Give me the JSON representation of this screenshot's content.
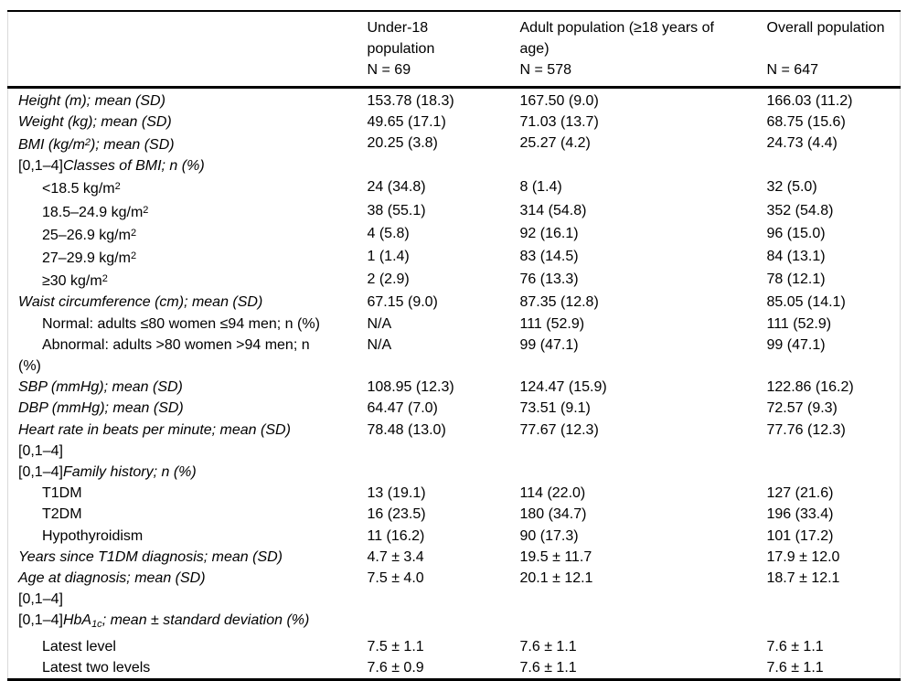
{
  "header": {
    "columns": [
      {
        "label": "Under-18 population",
        "n": "N = 69"
      },
      {
        "label": "Adult population (≥18 years of age)",
        "n": "N = 578"
      },
      {
        "label": "Overall population",
        "n": "N = 647"
      }
    ]
  },
  "rows": [
    {
      "indent": false,
      "label": [
        {
          "t": "Height (m); mean (SD)",
          "i": 1
        }
      ],
      "values": [
        "153.78 (18.3)",
        "167.50 (9.0)",
        "166.03 (11.2)"
      ]
    },
    {
      "indent": false,
      "label": [
        {
          "t": "Weight (kg); mean (SD)",
          "i": 1
        }
      ],
      "values": [
        "49.65 (17.1)",
        "71.03 (13.7)",
        "68.75 (15.6)"
      ]
    },
    {
      "indent": false,
      "label": [
        {
          "t": "BMI (kg/m",
          "i": 1
        },
        {
          "t": "2",
          "i": 1,
          "sup": 1
        },
        {
          "t": "); mean (SD)",
          "i": 1
        }
      ],
      "values": [
        "20.25 (3.8)",
        "25.27 (4.2)",
        "24.73 (4.4)"
      ]
    },
    {
      "indent": false,
      "label": [
        {
          "t": "[0,1–4]"
        },
        {
          "t": "Classes of BMI; n (%)",
          "i": 1
        }
      ],
      "values": [
        "",
        "",
        ""
      ]
    },
    {
      "indent": true,
      "label": [
        {
          "t": "<18.5 kg/m"
        },
        {
          "t": "2",
          "sup": 1
        }
      ],
      "values": [
        "24 (34.8)",
        "8 (1.4)",
        "32 (5.0)"
      ]
    },
    {
      "indent": true,
      "label": [
        {
          "t": "18.5–24.9 kg/m"
        },
        {
          "t": "2",
          "sup": 1
        }
      ],
      "values": [
        "38 (55.1)",
        "314 (54.8)",
        "352 (54.8)"
      ]
    },
    {
      "indent": true,
      "label": [
        {
          "t": "25–26.9 kg/m"
        },
        {
          "t": "2",
          "sup": 1
        }
      ],
      "values": [
        "4 (5.8)",
        "92 (16.1)",
        "96 (15.0)"
      ]
    },
    {
      "indent": true,
      "label": [
        {
          "t": "27–29.9 kg/m"
        },
        {
          "t": "2",
          "sup": 1
        }
      ],
      "values": [
        "1 (1.4)",
        "83 (14.5)",
        "84 (13.1)"
      ]
    },
    {
      "indent": true,
      "label": [
        {
          "t": "≥30 kg/m"
        },
        {
          "t": "2",
          "sup": 1
        }
      ],
      "values": [
        "2 (2.9)",
        "76 (13.3)",
        "78 (12.1)"
      ]
    },
    {
      "indent": false,
      "label": [
        {
          "t": "Waist circumference (cm); mean (SD)",
          "i": 1
        }
      ],
      "values": [
        "67.15 (9.0)",
        "87.35 (12.8)",
        "85.05 (14.1)"
      ]
    },
    {
      "indent": true,
      "label": [
        {
          "t": "Normal: adults ≤80 women ≤94 men; n (%)"
        }
      ],
      "values": [
        "N/A",
        "111 (52.9)",
        "111 (52.9)"
      ]
    },
    {
      "indent": true,
      "label": [
        {
          "t": "Abnormal: adults >80 women >94 men; n"
        },
        {
          "t": "(%)",
          "br": 1
        }
      ],
      "values": [
        "N/A",
        "99 (47.1)",
        "99 (47.1)"
      ]
    },
    {
      "indent": false,
      "label": [
        {
          "t": "SBP (mmHg); mean (SD)",
          "i": 1
        }
      ],
      "values": [
        "108.95 (12.3)",
        "124.47 (15.9)",
        "122.86 (16.2)"
      ]
    },
    {
      "indent": false,
      "label": [
        {
          "t": "DBP (mmHg); mean (SD)",
          "i": 1
        }
      ],
      "values": [
        "64.47 (7.0)",
        "73.51 (9.1)",
        "72.57 (9.3)"
      ]
    },
    {
      "indent": false,
      "label": [
        {
          "t": "Heart rate in beats per minute; mean (SD)",
          "i": 1
        },
        {
          "t": "[0,1–4]",
          "br": 1
        }
      ],
      "values": [
        "78.48 (13.0)",
        "77.67 (12.3)",
        "77.76 (12.3)"
      ]
    },
    {
      "indent": false,
      "label": [
        {
          "t": "[0,1–4]"
        },
        {
          "t": "Family history; n (%)",
          "i": 1
        }
      ],
      "values": [
        "",
        "",
        ""
      ]
    },
    {
      "indent": true,
      "label": [
        {
          "t": "T1DM"
        }
      ],
      "values": [
        "13 (19.1)",
        "114 (22.0)",
        "127 (21.6)"
      ]
    },
    {
      "indent": true,
      "label": [
        {
          "t": "T2DM"
        }
      ],
      "values": [
        "16 (23.5)",
        "180 (34.7)",
        "196 (33.4)"
      ]
    },
    {
      "indent": true,
      "label": [
        {
          "t": "Hypothyroidism"
        }
      ],
      "values": [
        "11 (16.2)",
        "90 (17.3)",
        "101 (17.2)"
      ]
    },
    {
      "indent": false,
      "label": [
        {
          "t": "Years since T1DM diagnosis; mean (SD)",
          "i": 1
        }
      ],
      "values": [
        "4.7 ± 3.4",
        "19.5 ± 11.7",
        "17.9 ± 12.0"
      ]
    },
    {
      "indent": false,
      "label": [
        {
          "t": "Age at diagnosis; mean (SD)",
          "i": 1
        },
        {
          "t": "[0,1–4]",
          "br": 1
        }
      ],
      "values": [
        "7.5 ± 4.0",
        "20.1 ± 12.1",
        "18.7 ± 12.1"
      ]
    },
    {
      "indent": false,
      "label": [
        {
          "t": "[0,1–4]"
        },
        {
          "t": "HbA",
          "i": 1
        },
        {
          "t": "1c",
          "i": 1,
          "sub": 1
        },
        {
          "t": "; mean ± standard deviation (%)",
          "i": 1
        }
      ],
      "values": [
        "",
        "",
        ""
      ]
    },
    {
      "indent": true,
      "label": [
        {
          "t": "Latest level"
        }
      ],
      "values": [
        "7.5 ± 1.1",
        "7.6 ± 1.1",
        "7.6 ± 1.1"
      ]
    },
    {
      "indent": true,
      "label": [
        {
          "t": "Latest two levels"
        }
      ],
      "values": [
        "7.6 ± 0.9",
        "7.6 ± 1.1",
        "7.6 ± 1.1"
      ]
    }
  ],
  "styles": {
    "rule_color": "#000000",
    "frame_color": "#d9d9d9",
    "text_color": "#000000",
    "background": "#ffffff"
  }
}
